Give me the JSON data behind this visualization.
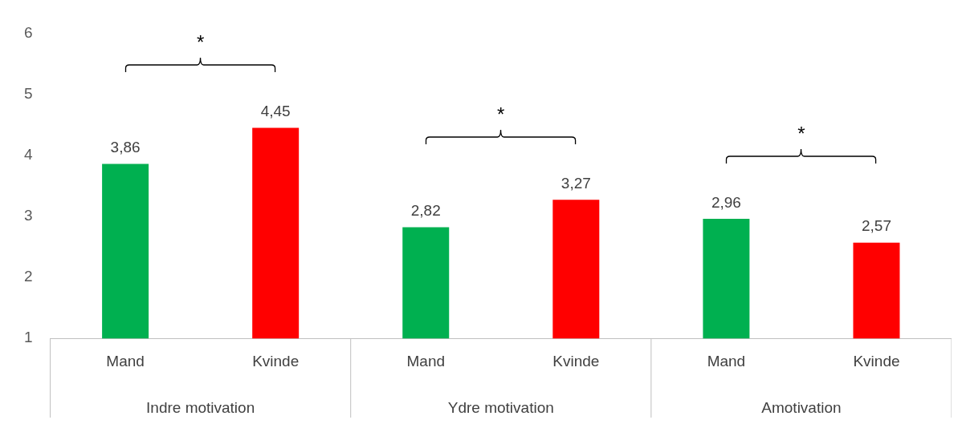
{
  "chart_data": {
    "type": "bar",
    "categories": [
      "Mand",
      "Kvinde",
      "Mand",
      "Kvinde",
      "Mand",
      "Kvinde"
    ],
    "values": [
      3.86,
      4.45,
      2.82,
      3.27,
      2.96,
      2.57
    ],
    "colors": [
      "#00b050",
      "#ff0000",
      "#00b050",
      "#ff0000",
      "#00b050",
      "#ff0000"
    ],
    "value_labels": [
      "3,86",
      "4,45",
      "2,82",
      "3,27",
      "2,96",
      "2,57"
    ],
    "ylim": [
      1,
      6
    ],
    "yticks": [
      1,
      2,
      3,
      4,
      5,
      6
    ],
    "grid": false,
    "legend": false,
    "annotations": [
      "Indre motivation",
      "Ydre motivation",
      "Amotivation",
      "*",
      "*",
      "*"
    ]
  }
}
